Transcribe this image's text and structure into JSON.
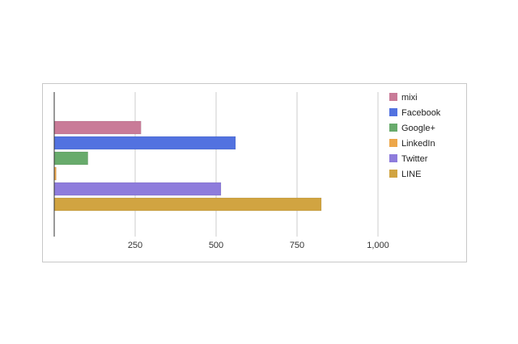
{
  "chart_data": {
    "type": "bar",
    "orientation": "horizontal",
    "series": [
      {
        "name": "mixi",
        "value": 268,
        "color": "#c97b98"
      },
      {
        "name": "Facebook",
        "value": 560,
        "color": "#5272e0"
      },
      {
        "name": "Google+",
        "value": 104,
        "color": "#68ab6c"
      },
      {
        "name": "LinkedIn",
        "value": 6,
        "color": "#eda74a"
      },
      {
        "name": "Twitter",
        "value": 515,
        "color": "#8e7cdc"
      },
      {
        "name": "LINE",
        "value": 825,
        "color": "#d1a441"
      }
    ],
    "xlim": [
      0,
      1000
    ],
    "x_ticks": [
      250,
      500,
      750,
      1000
    ],
    "x_tick_labels": [
      "250",
      "500",
      "750",
      "1,000"
    ],
    "grid": true,
    "legend_position": "right",
    "title": "",
    "xlabel": "",
    "ylabel": ""
  }
}
